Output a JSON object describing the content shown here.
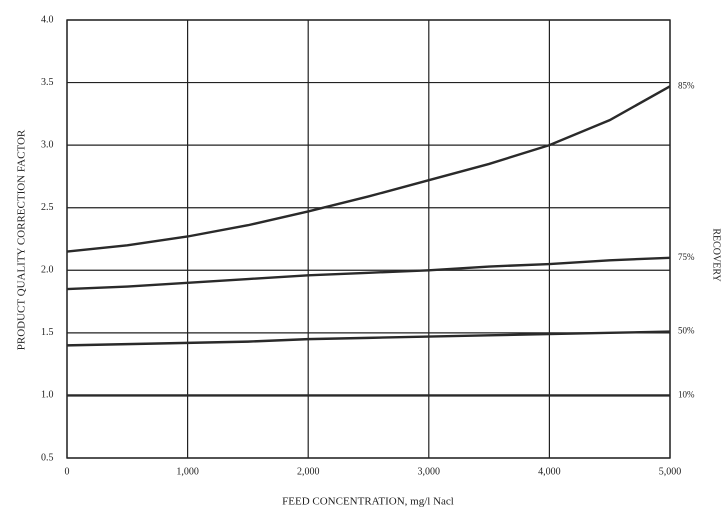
{
  "chart_data": {
    "type": "line",
    "x_label": "FEED CONCENTRATION, mg/l Nacl",
    "y_label": "PRODUCT QUALITY CORRECTION FACTOR",
    "legend_title": "RECOVERY",
    "x": [
      0,
      500,
      1000,
      1500,
      2000,
      2500,
      3000,
      3500,
      4000,
      4500,
      5000
    ],
    "series": [
      {
        "name": "85%",
        "color": "#2a2a2a",
        "values": [
          2.15,
          2.2,
          2.27,
          2.36,
          2.47,
          2.59,
          2.72,
          2.85,
          3.0,
          3.2,
          3.47
        ]
      },
      {
        "name": "75%",
        "color": "#2a2a2a",
        "values": [
          1.85,
          1.87,
          1.9,
          1.93,
          1.96,
          1.98,
          2.0,
          2.03,
          2.05,
          2.08,
          2.1
        ]
      },
      {
        "name": "50%",
        "color": "#2a2a2a",
        "values": [
          1.4,
          1.41,
          1.42,
          1.43,
          1.45,
          1.46,
          1.47,
          1.48,
          1.49,
          1.5,
          1.51
        ]
      },
      {
        "name": "10%",
        "color": "#2a2a2a",
        "values": [
          1.0,
          1.0,
          1.0,
          1.0,
          1.0,
          1.0,
          1.0,
          1.0,
          1.0,
          1.0,
          1.0
        ]
      }
    ],
    "xlim": [
      0,
      5000
    ],
    "xticks": [
      0,
      {
        "value": 1000,
        "label": "1,000"
      },
      {
        "value": 2000,
        "label": "2,000"
      },
      {
        "value": 3000,
        "label": "3,000"
      },
      {
        "value": 4000,
        "label": "4,000"
      },
      {
        "value": 5000,
        "label": "5,000"
      }
    ],
    "ylim": [
      0.5,
      4
    ],
    "yticks": [
      0.5,
      {
        "value": 1,
        "label": "1.0"
      },
      1.5,
      {
        "value": 2,
        "label": "2.0"
      },
      2.5,
      {
        "value": 3,
        "label": "3.0"
      },
      3.5,
      {
        "value": 4,
        "label": "4.0"
      }
    ],
    "grid": true
  }
}
